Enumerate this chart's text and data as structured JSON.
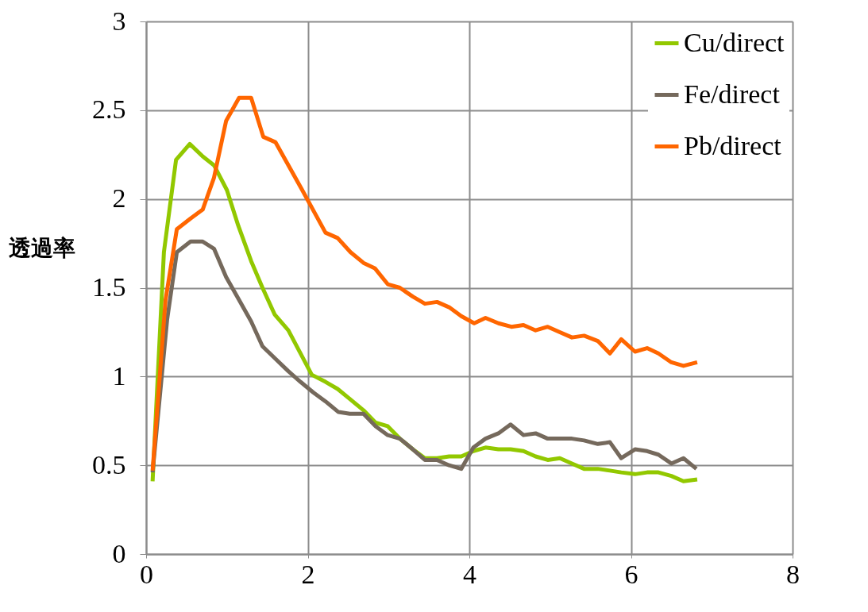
{
  "chart_data": {
    "type": "line",
    "ylabel": "透過率",
    "xlim": [
      0,
      8
    ],
    "xticks": [
      0,
      2,
      4,
      6,
      8
    ],
    "ylim": [
      0,
      3
    ],
    "yticks": [
      0,
      0.5,
      1,
      1.5,
      2,
      2.5,
      3
    ],
    "grid": true,
    "legend": "top right",
    "line_style": "solid",
    "marker": "none",
    "series": [
      {
        "name": "Cu/direct",
        "color": "#92c800",
        "x": [
          0.08,
          0.22,
          0.37,
          0.54,
          0.7,
          0.84,
          1.0,
          1.14,
          1.3,
          1.44,
          1.59,
          1.76,
          2.05,
          2.22,
          2.37,
          2.53,
          2.69,
          2.84,
          2.99,
          3.14,
          3.3,
          3.45,
          3.6,
          3.75,
          3.9,
          4.05,
          4.2,
          4.36,
          4.51,
          4.67,
          4.82,
          4.97,
          5.12,
          5.27,
          5.42,
          5.59,
          5.74,
          5.88,
          6.05,
          6.2,
          6.34,
          6.5,
          6.65,
          6.82
        ],
        "values": [
          0.41,
          1.7,
          2.22,
          2.31,
          2.24,
          2.19,
          2.05,
          1.85,
          1.65,
          1.5,
          1.35,
          1.26,
          1.01,
          0.97,
          0.93,
          0.87,
          0.81,
          0.74,
          0.72,
          0.65,
          0.59,
          0.54,
          0.54,
          0.55,
          0.55,
          0.58,
          0.6,
          0.59,
          0.59,
          0.58,
          0.55,
          0.53,
          0.54,
          0.51,
          0.48,
          0.48,
          0.47,
          0.46,
          0.45,
          0.46,
          0.46,
          0.44,
          0.41,
          0.42
        ]
      },
      {
        "name": "Fe/direct",
        "color": "#75695c",
        "x": [
          0.08,
          0.26,
          0.38,
          0.55,
          0.7,
          0.84,
          0.99,
          1.14,
          1.3,
          1.44,
          1.6,
          1.76,
          1.91,
          2.07,
          2.22,
          2.38,
          2.52,
          2.69,
          2.84,
          2.99,
          3.14,
          3.3,
          3.45,
          3.6,
          3.75,
          3.9,
          4.05,
          4.2,
          4.36,
          4.51,
          4.67,
          4.82,
          4.97,
          5.12,
          5.27,
          5.42,
          5.59,
          5.74,
          5.88,
          6.05,
          6.2,
          6.34,
          6.5,
          6.65,
          6.81
        ],
        "values": [
          0.46,
          1.32,
          1.7,
          1.76,
          1.76,
          1.72,
          1.56,
          1.44,
          1.31,
          1.17,
          1.1,
          1.03,
          0.97,
          0.91,
          0.86,
          0.8,
          0.79,
          0.79,
          0.72,
          0.67,
          0.65,
          0.59,
          0.53,
          0.53,
          0.5,
          0.48,
          0.6,
          0.65,
          0.68,
          0.73,
          0.67,
          0.68,
          0.65,
          0.65,
          0.65,
          0.64,
          0.62,
          0.63,
          0.54,
          0.59,
          0.58,
          0.56,
          0.51,
          0.54,
          0.48
        ]
      },
      {
        "name": "Pb/direct",
        "color": "#ff6600",
        "x": [
          0.08,
          0.24,
          0.38,
          0.55,
          0.7,
          0.84,
          0.99,
          1.15,
          1.3,
          1.45,
          1.6,
          1.92,
          2.22,
          2.37,
          2.53,
          2.69,
          2.83,
          2.99,
          3.14,
          3.3,
          3.45,
          3.6,
          3.75,
          3.9,
          4.06,
          4.2,
          4.36,
          4.52,
          4.67,
          4.82,
          4.97,
          5.12,
          5.27,
          5.42,
          5.59,
          5.74,
          5.88,
          6.05,
          6.2,
          6.34,
          6.5,
          6.65,
          6.82
        ],
        "values": [
          0.47,
          1.43,
          1.83,
          1.89,
          1.94,
          2.12,
          2.44,
          2.57,
          2.57,
          2.35,
          2.32,
          2.06,
          1.81,
          1.78,
          1.7,
          1.64,
          1.61,
          1.52,
          1.5,
          1.45,
          1.41,
          1.42,
          1.39,
          1.34,
          1.3,
          1.33,
          1.3,
          1.28,
          1.29,
          1.26,
          1.28,
          1.25,
          1.22,
          1.23,
          1.2,
          1.13,
          1.21,
          1.14,
          1.16,
          1.13,
          1.08,
          1.06,
          1.08
        ]
      }
    ]
  }
}
